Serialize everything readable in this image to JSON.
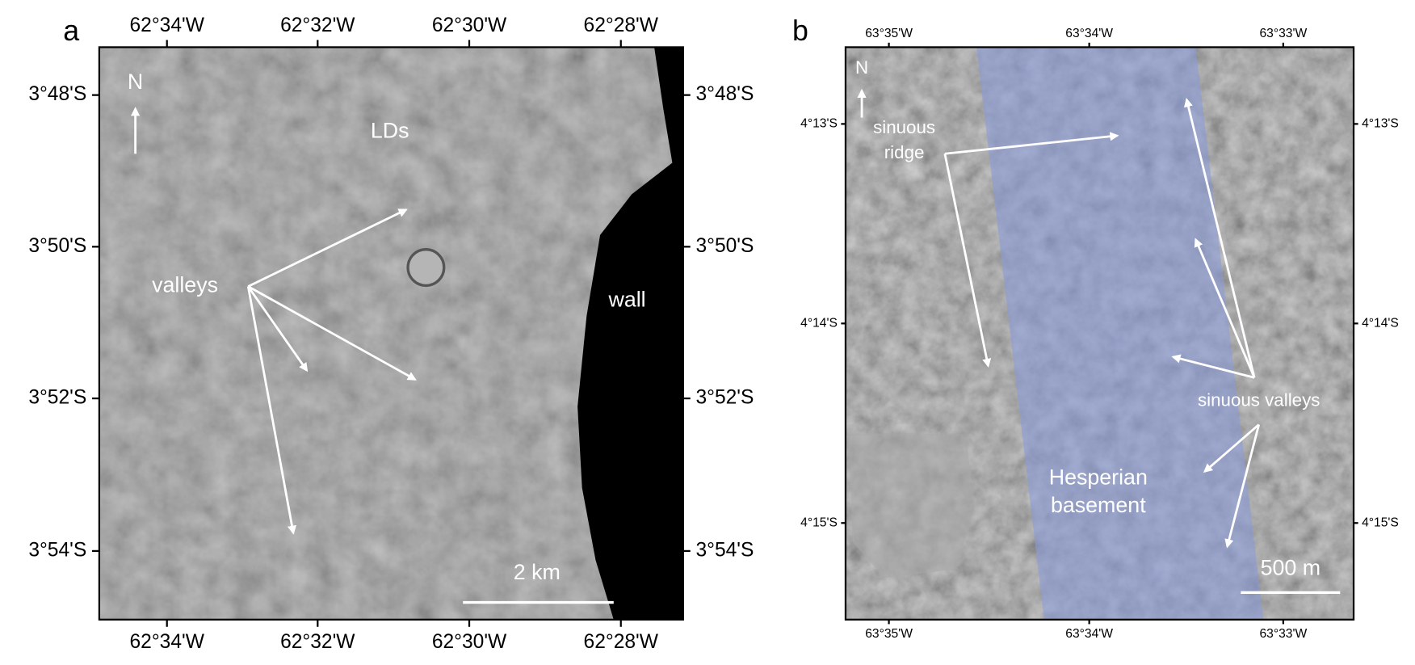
{
  "panels": [
    {
      "label": "a",
      "x_ticks": [
        "62°34'W",
        "62°32'W",
        "62°30'W",
        "62°28'W"
      ],
      "y_ticks": [
        "3°48'S",
        "3°50'S",
        "3°52'S",
        "3°54'S"
      ],
      "annotations": {
        "north": "N",
        "lds": "LDs",
        "valleys": "valleys",
        "wall": "wall",
        "scale_bar": "2 km"
      }
    },
    {
      "label": "b",
      "x_ticks": [
        "63°35'W",
        "63°34'W",
        "63°33'W"
      ],
      "y_ticks": [
        "4°13'S",
        "4°14'S",
        "4°15'S"
      ],
      "annotations": {
        "north": "N",
        "ridge": [
          "sinuous",
          "ridge"
        ],
        "valleys": "sinuous valleys",
        "basement": [
          "Hesperian",
          "basement"
        ],
        "scale_bar": "500 m"
      }
    }
  ]
}
